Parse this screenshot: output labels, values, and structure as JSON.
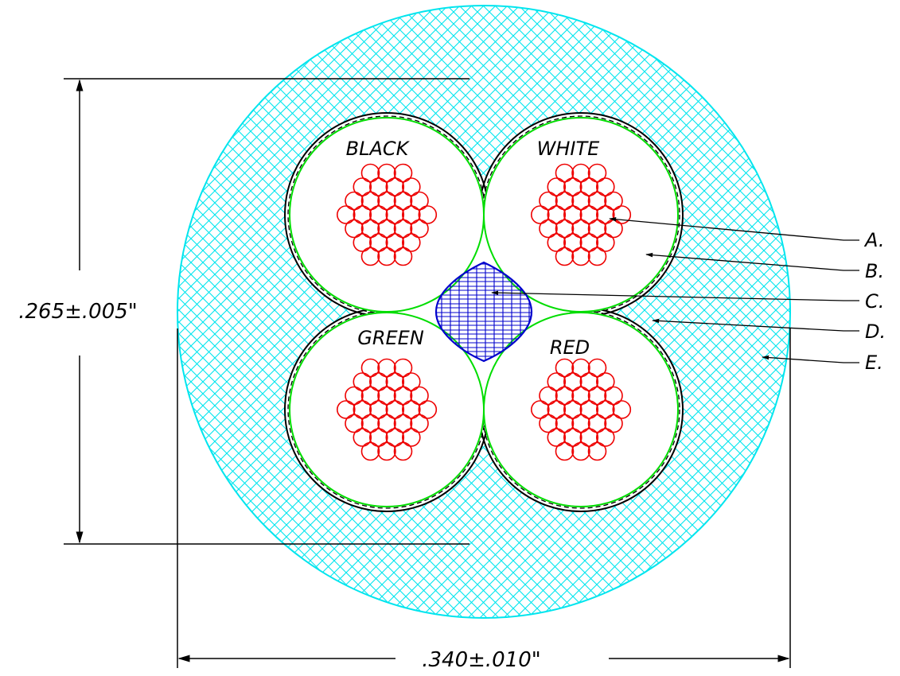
{
  "cable": {
    "conductors": [
      {
        "name": "BLACK"
      },
      {
        "name": "WHITE"
      },
      {
        "name": "GREEN"
      },
      {
        "name": "RED"
      }
    ]
  },
  "callouts": [
    "A.",
    "B.",
    "C.",
    "D.",
    "E."
  ],
  "dimensions": {
    "height": ".265±.005\"",
    "width": ".340±.010\""
  },
  "colors": {
    "jacket_hatch": "#00e5ee",
    "insulation": "#00dd00",
    "strands": "#ee0000",
    "filler": "#0000cc",
    "lines": "#000000"
  }
}
